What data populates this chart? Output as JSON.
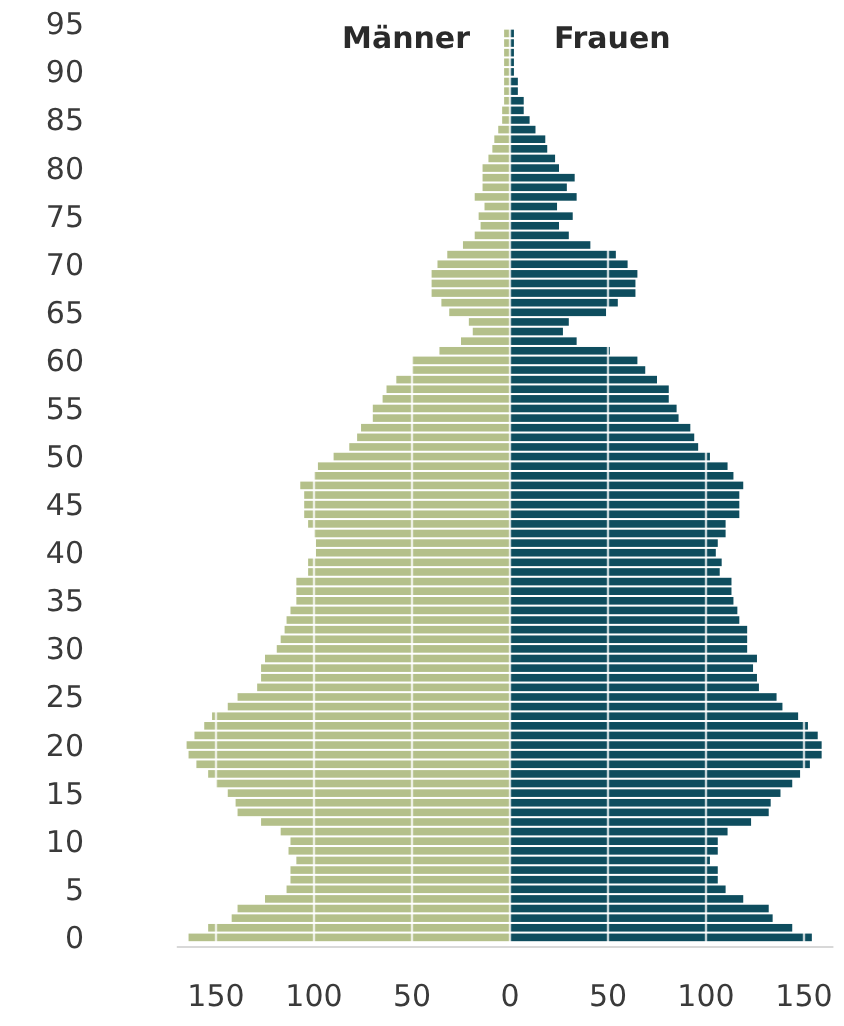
{
  "chart_data": {
    "type": "bar",
    "orientation": "horizontal",
    "x": [
      0,
      1,
      2,
      3,
      4,
      5,
      6,
      7,
      8,
      9,
      10,
      11,
      12,
      13,
      14,
      15,
      16,
      17,
      18,
      19,
      20,
      21,
      22,
      23,
      24,
      25,
      26,
      27,
      28,
      29,
      30,
      31,
      32,
      33,
      34,
      35,
      36,
      37,
      38,
      39,
      40,
      41,
      42,
      43,
      44,
      45,
      46,
      47,
      48,
      49,
      50,
      51,
      52,
      53,
      54,
      55,
      56,
      57,
      58,
      59,
      60,
      61,
      62,
      63,
      64,
      65,
      66,
      67,
      68,
      69,
      70,
      71,
      72,
      73,
      74,
      75,
      76,
      77,
      78,
      79,
      80,
      81,
      82,
      83,
      84,
      85,
      86,
      87,
      88,
      89,
      90,
      91,
      92,
      93,
      94
    ],
    "series": [
      {
        "name": "Männer",
        "color": "#b4c08a",
        "values": [
          -164,
          -154,
          -142,
          -139,
          -125,
          -114,
          -112,
          -112,
          -109,
          -113,
          -112,
          -117,
          -127,
          -139,
          -140,
          -144,
          -150,
          -154,
          -160,
          -164,
          -165,
          -161,
          -156,
          -152,
          -144,
          -139,
          -129,
          -127,
          -127,
          -125,
          -119,
          -117,
          -115,
          -114,
          -112,
          -109,
          -109,
          -109,
          -103,
          -103,
          -99,
          -99,
          -100,
          -103,
          -105,
          -105,
          -105,
          -107,
          -100,
          -98,
          -90,
          -82,
          -78,
          -76,
          -70,
          -70,
          -65,
          -63,
          -58,
          -50,
          -50,
          -36,
          -25,
          -19,
          -21,
          -31,
          -35,
          -40,
          -40,
          -40,
          -37,
          -32,
          -24,
          -18,
          -15,
          -16,
          -13,
          -18,
          -14,
          -14,
          -14,
          -11,
          -9,
          -8,
          -6,
          -4,
          -4,
          -3,
          -3,
          -3,
          -3,
          -3,
          -3,
          -3,
          -3
        ]
      },
      {
        "name": "Frauen",
        "color": "#0e4d5e",
        "values": [
          154,
          144,
          134,
          132,
          119,
          110,
          106,
          106,
          102,
          106,
          106,
          111,
          123,
          132,
          133,
          138,
          144,
          148,
          153,
          159,
          159,
          157,
          152,
          147,
          139,
          136,
          127,
          126,
          124,
          126,
          121,
          121,
          121,
          117,
          116,
          114,
          113,
          113,
          107,
          108,
          105,
          106,
          110,
          110,
          117,
          117,
          117,
          119,
          114,
          111,
          102,
          96,
          94,
          92,
          86,
          85,
          81,
          81,
          75,
          69,
          65,
          51,
          34,
          27,
          30,
          49,
          55,
          64,
          64,
          65,
          60,
          54,
          41,
          30,
          25,
          32,
          24,
          34,
          29,
          33,
          25,
          23,
          19,
          18,
          13,
          10,
          7,
          7,
          4,
          4,
          2,
          2,
          2,
          2,
          2
        ]
      }
    ],
    "xlim": [
      -170,
      165
    ],
    "xticks": [
      {
        "value": -150,
        "label": "150"
      },
      {
        "value": -100,
        "label": "100"
      },
      {
        "value": -50,
        "label": "50"
      },
      0,
      50,
      100,
      150
    ],
    "ylim": [
      -1,
      96
    ],
    "yticks": [
      0,
      5,
      10,
      15,
      20,
      25,
      30,
      35,
      40,
      45,
      50,
      55,
      60,
      65,
      70,
      75,
      80,
      85,
      90,
      95
    ],
    "grid": "x",
    "stacked": true
  }
}
